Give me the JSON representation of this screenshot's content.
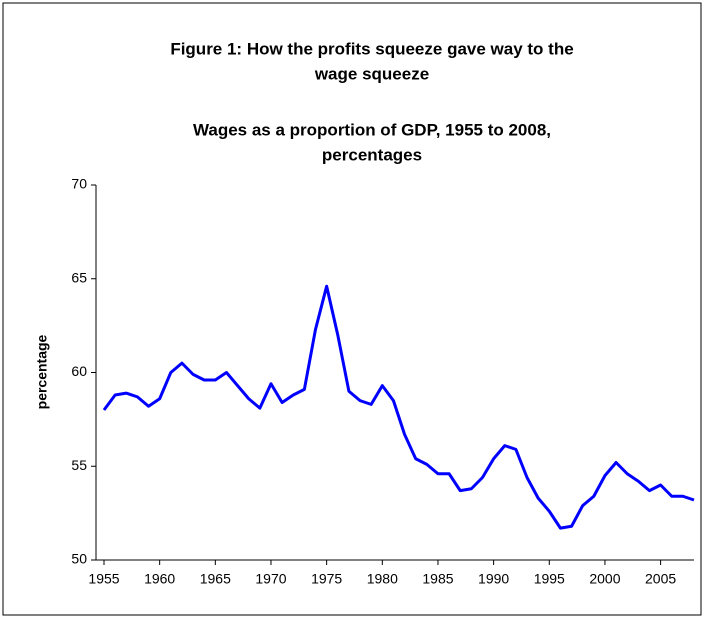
{
  "chart_data": {
    "type": "line",
    "title": [
      "Figure 1: How the profits squeeze gave way to the",
      "wage squeeze"
    ],
    "subtitle": [
      "Wages as a proportion of GDP, 1955 to 2008,",
      "percentages"
    ],
    "y_label": "percentage",
    "x": [
      1955,
      1956,
      1957,
      1958,
      1959,
      1960,
      1961,
      1962,
      1963,
      1964,
      1965,
      1966,
      1967,
      1968,
      1969,
      1970,
      1971,
      1972,
      1973,
      1974,
      1975,
      1976,
      1977,
      1978,
      1979,
      1980,
      1981,
      1982,
      1983,
      1984,
      1985,
      1986,
      1987,
      1988,
      1989,
      1990,
      1991,
      1992,
      1993,
      1994,
      1995,
      1996,
      1997,
      1998,
      1999,
      2000,
      2001,
      2002,
      2003,
      2004,
      2005,
      2006,
      2007,
      2008
    ],
    "series": [
      {
        "color": "#0000ff",
        "values": [
          58.0,
          58.8,
          58.9,
          58.7,
          58.2,
          58.6,
          60.0,
          60.5,
          59.9,
          59.6,
          59.6,
          60.0,
          59.3,
          58.6,
          58.1,
          59.4,
          58.4,
          58.8,
          59.1,
          62.3,
          64.6,
          62.0,
          59.0,
          58.5,
          58.3,
          59.3,
          58.5,
          56.7,
          55.4,
          55.1,
          54.6,
          54.6,
          53.7,
          53.8,
          54.4,
          55.4,
          56.1,
          55.9,
          54.4,
          53.3,
          52.6,
          51.7,
          51.8,
          52.9,
          53.4,
          54.5,
          55.2,
          54.6,
          54.2,
          53.7,
          54.0,
          53.4,
          53.4,
          53.2
        ]
      }
    ],
    "xlim": [
      1955,
      2008
    ],
    "xticks": [
      1955,
      1960,
      1965,
      1970,
      1975,
      1980,
      1985,
      1990,
      1995,
      2000,
      2005
    ],
    "ylim": [
      50,
      70
    ],
    "yticks": [
      50,
      55,
      60,
      65,
      70
    ],
    "grid": false
  }
}
